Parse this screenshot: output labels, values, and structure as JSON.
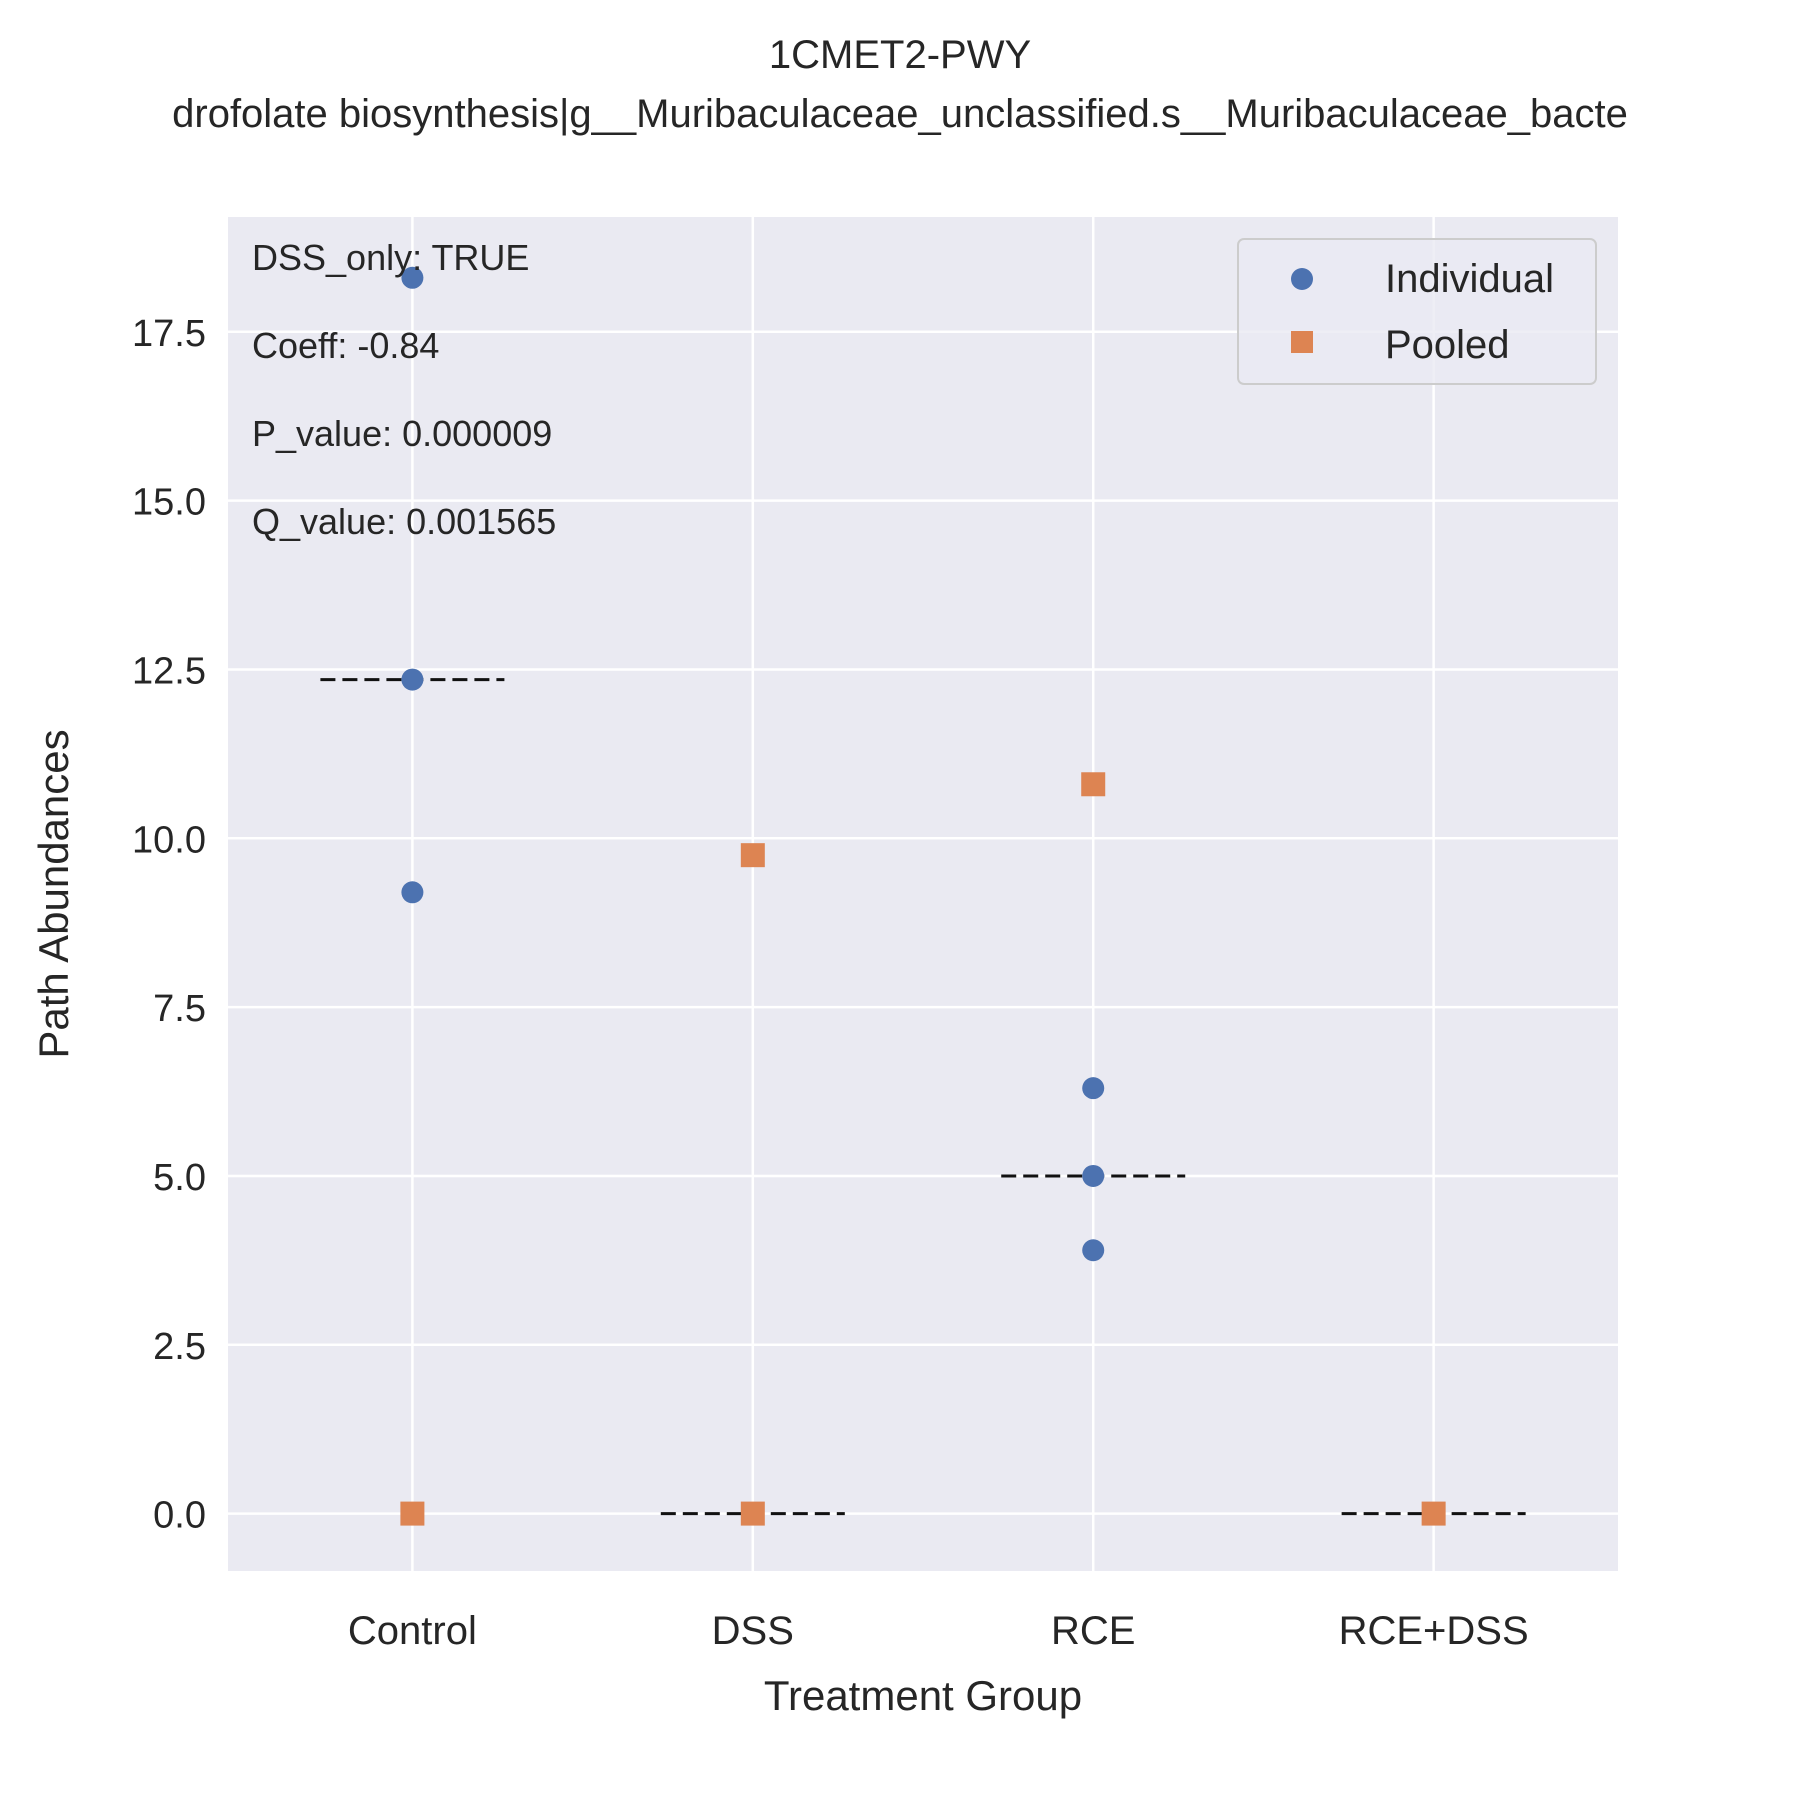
{
  "chart_data": {
    "type": "scatter",
    "title": "1CMET2-PWY",
    "subtitle": "drofolate biosynthesis|g__Muribaculaceae_unclassified.s__Muribaculaceae_bacte",
    "xlabel": "Treatment Group",
    "ylabel": "Path Abundances",
    "categories": [
      "Control",
      "DSS",
      "RCE",
      "RCE+DSS"
    ],
    "ylim": [
      -0.85,
      19.2
    ],
    "yticks": [
      "0.0",
      "2.5",
      "5.0",
      "7.5",
      "10.0",
      "12.5",
      "15.0",
      "17.5"
    ],
    "grid": true,
    "legend_position": "top-right",
    "series": [
      {
        "name": "Individual",
        "marker": "circle",
        "color": "#4c72b0",
        "points": [
          {
            "category": "Control",
            "y": 18.3
          },
          {
            "category": "Control",
            "y": 12.35
          },
          {
            "category": "Control",
            "y": 9.2
          },
          {
            "category": "RCE",
            "y": 6.3
          },
          {
            "category": "RCE",
            "y": 5.0
          },
          {
            "category": "RCE",
            "y": 3.9
          }
        ]
      },
      {
        "name": "Pooled",
        "marker": "square",
        "color": "#dd8452",
        "points": [
          {
            "category": "Control",
            "y": 0.0
          },
          {
            "category": "DSS",
            "y": 9.75
          },
          {
            "category": "DSS",
            "y": 0.0
          },
          {
            "category": "RCE",
            "y": 10.8
          },
          {
            "category": "RCE+DSS",
            "y": 0.0
          }
        ]
      }
    ],
    "medians": [
      {
        "category": "Control",
        "y": 12.35
      },
      {
        "category": "DSS",
        "y": 0.0
      },
      {
        "category": "RCE",
        "y": 5.0
      },
      {
        "category": "RCE+DSS",
        "y": 0.0
      }
    ],
    "annotations": [
      "DSS_only: TRUE",
      "Coeff: -0.84",
      "P_value: 0.000009",
      "Q_value: 0.001565"
    ]
  }
}
